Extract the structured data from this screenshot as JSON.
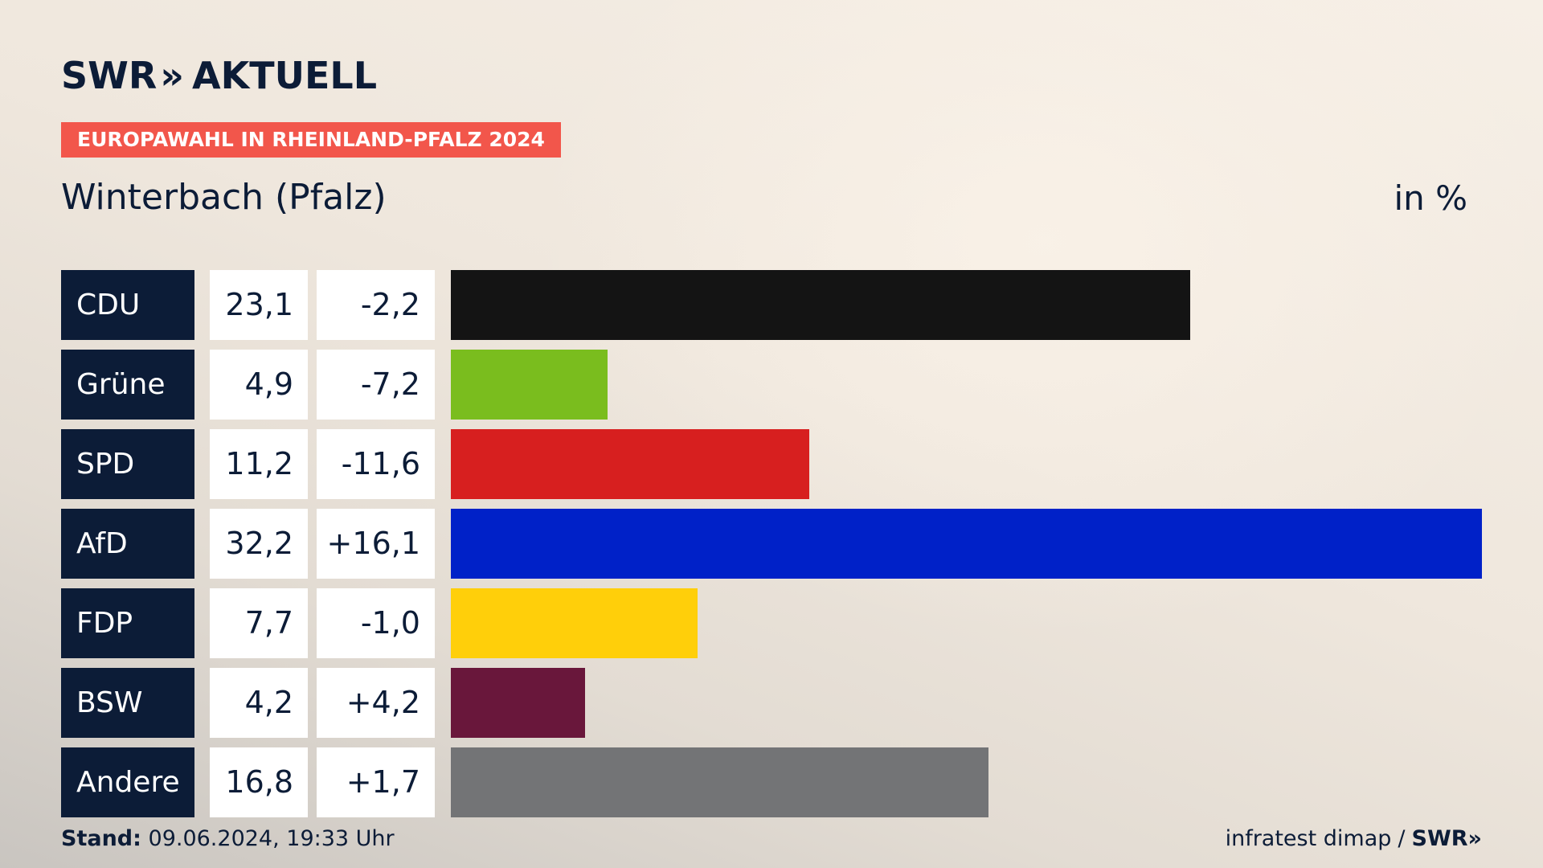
{
  "header": {
    "logo_text": "SWR",
    "logo_chevrons": "»",
    "logo_product": "AKTUELL",
    "topic": "EUROPAWAHL IN RHEINLAND-PFALZ 2024",
    "title": "Winterbach (Pfalz)",
    "unit": "in %"
  },
  "colors": {
    "CDU": "#141414",
    "Grüne": "#7abd1e",
    "SPD": "#d71f1f",
    "AfD": "#0021c8",
    "FDP": "#ffcf0a",
    "BSW": "#69173b",
    "Andere": "#737476"
  },
  "chart_data": {
    "type": "bar",
    "orientation": "horizontal",
    "categories": [
      "CDU",
      "Grüne",
      "SPD",
      "AfD",
      "FDP",
      "BSW",
      "Andere"
    ],
    "values": [
      23.1,
      4.9,
      11.2,
      32.2,
      7.7,
      4.2,
      16.8
    ],
    "value_labels": [
      "23,1",
      "4,9",
      "11,2",
      "32,2",
      "7,7",
      "4,2",
      "16,8"
    ],
    "diff_labels": [
      "-2,2",
      "-7,2",
      "-11,6",
      "+16,1",
      "-1,0",
      "+4,2",
      "+1,7"
    ],
    "diffs": [
      -2.2,
      -7.2,
      -11.6,
      16.1,
      -1.0,
      4.2,
      1.7
    ],
    "title": "Winterbach (Pfalz)",
    "unit": "in %",
    "xlim": [
      0,
      32.2
    ],
    "grid": false
  },
  "footer": {
    "stand_label": "Stand:",
    "stand_value": "09.06.2024, 19:33 Uhr",
    "source": "infratest dimap",
    "separator": "/",
    "brand": "SWR",
    "brand_chevrons": "»"
  }
}
